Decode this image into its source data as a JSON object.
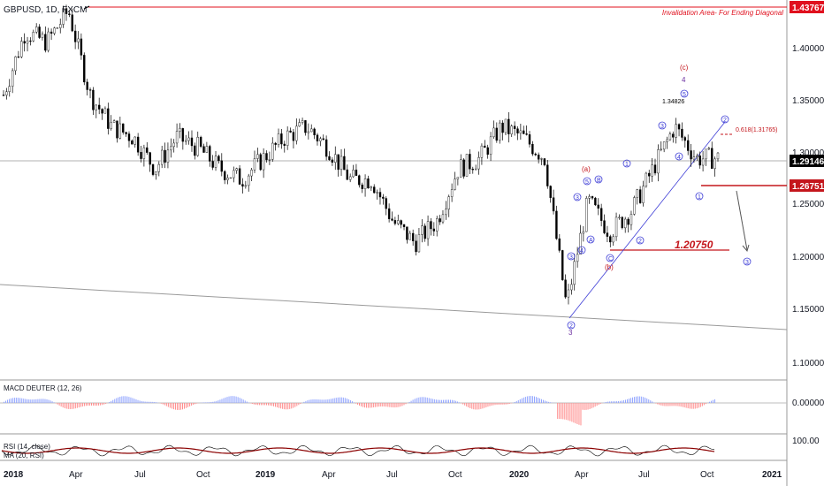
{
  "header": {
    "symbol": "GBPUSD, 1D, FXCM",
    "invalidation_label": "Invalidation Area- For Ending Diagonal",
    "fib_label": "0.618(1.31765)",
    "peak_label": "1.34826",
    "target_label": "1.20750"
  },
  "price_axis": {
    "ticks": [
      "1.40000",
      "1.35000",
      "1.30000",
      "1.25000",
      "1.20000",
      "1.15000",
      "1.10000"
    ],
    "tags": [
      {
        "text": "1.43767",
        "value": 1.43767,
        "color": "#e0101e"
      },
      {
        "text": "1.29146",
        "value": 1.29146,
        "color": "#000000"
      },
      {
        "text": "1.26751",
        "value": 1.26751,
        "color": "#c4161c"
      }
    ]
  },
  "time_axis": {
    "labels": [
      "2018",
      "Apr",
      "Jul",
      "Oct",
      "2019",
      "Apr",
      "Jul",
      "Oct",
      "2020",
      "Apr",
      "Jul",
      "Oct",
      "2021"
    ]
  },
  "wave_labels": {
    "blue_circled": [
      "1",
      "2",
      "3",
      "4",
      "5",
      "A",
      "B",
      "C"
    ],
    "red": [
      "(a)",
      "(b)",
      "(c)"
    ],
    "purple": [
      "3",
      "4"
    ]
  },
  "panels": {
    "macd": {
      "label": "MACD DEUTER (12, 26)",
      "tick": "0.00000"
    },
    "rsi": {
      "label1": "RSI (14, close)",
      "label2": "MA (20, RSI)",
      "tick": "100.00"
    }
  },
  "colors": {
    "candle": "#000000",
    "invalidation": "#e0101e",
    "target": "#c4161c",
    "wave_blue": "#3d3dd6",
    "wave_red": "#c4161c",
    "macd_pos": "#8fa3ff",
    "macd_neg": "#ff8a8a",
    "rsi_ma": "#8b0000"
  },
  "chart_data": {
    "type": "candlestick",
    "instrument": "GBPUSD",
    "timeframe": "1D",
    "x_range": [
      "2018-01",
      "2020-10"
    ],
    "y_range": [
      1.08,
      1.44
    ],
    "key_levels": [
      {
        "value": 1.43767,
        "label": "Invalidation Area- For Ending Diagonal"
      },
      {
        "value": 1.31765,
        "label": "0.618(1.31765)"
      },
      {
        "value": 1.2075,
        "label": "1.20750"
      },
      {
        "value": 1.26751
      },
      {
        "value": 1.29146
      }
    ],
    "series": [
      {
        "name": "GBPUSD",
        "points": [
          [
            "2018-01",
            1.35
          ],
          [
            "2018-02",
            1.41
          ],
          [
            "2018-03",
            1.4
          ],
          [
            "2018-04",
            1.43
          ],
          [
            "2018-05",
            1.35
          ],
          [
            "2018-06",
            1.32
          ],
          [
            "2018-07",
            1.31
          ],
          [
            "2018-08",
            1.28
          ],
          [
            "2018-09",
            1.31
          ],
          [
            "2018-10",
            1.3
          ],
          [
            "2018-11",
            1.28
          ],
          [
            "2018-12",
            1.27
          ],
          [
            "2019-01",
            1.29
          ],
          [
            "2019-02",
            1.31
          ],
          [
            "2019-03",
            1.32
          ],
          [
            "2019-04",
            1.3
          ],
          [
            "2019-05",
            1.27
          ],
          [
            "2019-06",
            1.27
          ],
          [
            "2019-07",
            1.23
          ],
          [
            "2019-08",
            1.21
          ],
          [
            "2019-09",
            1.23
          ],
          [
            "2019-10",
            1.28
          ],
          [
            "2019-11",
            1.29
          ],
          [
            "2019-12",
            1.32
          ],
          [
            "2020-01",
            1.31
          ],
          [
            "2020-02",
            1.29
          ],
          [
            "2020-03",
            1.15
          ],
          [
            "2020-04",
            1.25
          ],
          [
            "2020-05",
            1.22
          ],
          [
            "2020-06",
            1.24
          ],
          [
            "2020-07",
            1.28
          ],
          [
            "2020-08",
            1.32
          ],
          [
            "2020-09",
            1.29
          ],
          [
            "2020-10",
            1.29
          ]
        ]
      }
    ]
  }
}
